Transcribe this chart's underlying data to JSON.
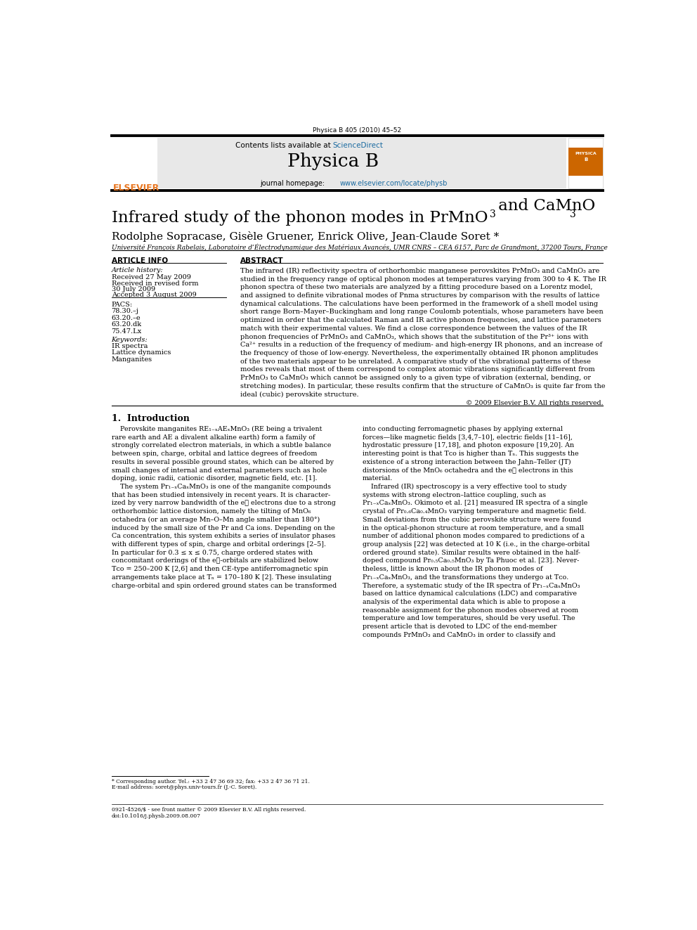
{
  "page_width": 9.92,
  "page_height": 13.23,
  "background_color": "#ffffff",
  "top_journal_line": "Physica B 405 (2010) 45–52",
  "header_bg": "#e8e8e8",
  "header_sciencedirect_color": "#1a6aa0",
  "header_journal_name": "Physica B",
  "header_homepage_url": "www.elsevier.com/locate/physb",
  "header_homepage_url_color": "#1a6aa0",
  "title_main": "Infrared study of the phonon modes in PrMnO",
  "title_sub1": "3",
  "title_mid": " and CaMnO",
  "title_sub2": "3",
  "authors": "Rodolphe Sopracase, Gisèle Gruener, Enrick Olive, Jean-Claude Soret *",
  "affiliation": "Université François Rabelais, Laboratoire d’Électrodynamique des Matériaux Avancés, UMR CNRS – CEA 6157, Parc de Grandmont, 37200 Tours, France",
  "article_info_header": "ARTICLE INFO",
  "history_label": "Article history:",
  "received": "Received 27 May 2009",
  "revised": "Received in revised form",
  "revised2": "30 July 2009",
  "accepted": "Accepted 3 August 2009",
  "pacs_label": "PACS:",
  "pacs_values": [
    "78.30.–j",
    "63.20.–e",
    "63.20.dk",
    "75.47.Lx"
  ],
  "keywords_label": "Keywords:",
  "keywords": [
    "IR spectra",
    "Lattice dynamics",
    "Manganites"
  ],
  "abstract_header": "ABSTRACT",
  "abstract_lines": [
    "The infrared (IR) reflectivity spectra of orthorhombic manganese perovskites PrMnO₃ and CaMnO₃ are",
    "studied in the frequency range of optical phonon modes at temperatures varying from 300 to 4 K. The IR",
    "phonon spectra of these two materials are analyzed by a fitting procedure based on a Lorentz model,",
    "and assigned to definite vibrational modes of Pnma structures by comparison with the results of lattice",
    "dynamical calculations. The calculations have been performed in the framework of a shell model using",
    "short range Born–Mayer–Buckingham and long range Coulomb potentials, whose parameters have been",
    "optimized in order that the calculated Raman and IR active phonon frequencies, and lattice parameters",
    "match with their experimental values. We find a close correspondence between the values of the IR",
    "phonon frequencies of PrMnO₃ and CaMnO₃, which shows that the substitution of the Pr³⁺ ions with",
    "Ca²⁺ results in a reduction of the frequency of medium- and high-energy IR phonons, and an increase of",
    "the frequency of those of low-energy. Nevertheless, the experimentally obtained IR phonon amplitudes",
    "of the two materials appear to be unrelated. A comparative study of the vibrational patterns of these",
    "modes reveals that most of them correspond to complex atomic vibrations significantly different from",
    "PrMnO₃ to CaMnO₃ which cannot be assigned only to a given type of vibration (external, bending, or",
    "stretching modes). In particular, these results confirm that the structure of CaMnO₃ is quite far from the",
    "ideal (cubic) perovskite structure."
  ],
  "copyright": "© 2009 Elsevier B.V. All rights reserved.",
  "section1_title": "1.  Introduction",
  "intro_col1_lines": [
    "    Perovskite manganites RE₁₋ₓAEₓMnO₃ (RE being a trivalent",
    "rare earth and AE a divalent alkaline earth) form a family of",
    "strongly correlated electron materials, in which a subtle balance",
    "between spin, charge, orbital and lattice degrees of freedom",
    "results in several possible ground states, which can be altered by",
    "small changes of internal and external parameters such as hole",
    "doping, ionic radii, cationic disorder, magnetic field, etc. [1].",
    "    The system Pr₁₋ₓCaₓMnO₃ is one of the manganite compounds",
    "that has been studied intensively in recent years. It is character-",
    "ized by very narrow bandwidth of the e⁧ electrons due to a strong",
    "orthorhombic lattice distorsion, namely the tilting of MnO₆",
    "octahedra (or an average Mn–O–Mn angle smaller than 180°)",
    "induced by the small size of the Pr and Ca ions. Depending on the",
    "Ca concentration, this system exhibits a series of insulator phases",
    "with different types of spin, charge and orbital orderings [2–5].",
    "In particular for 0.3 ≤ x ≤ 0.75, charge ordered states with",
    "concomitant orderings of the e⁧-orbitals are stabilized below",
    "Tᴄᴏ = 250–200 K [2,6] and then CE-type antiferromagnetic spin",
    "arrangements take place at Tₙ = 170–180 K [2]. These insulating",
    "charge-orbital and spin ordered ground states can be transformed"
  ],
  "intro_col2_lines": [
    "into conducting ferromagnetic phases by applying external",
    "forces—like magnetic fields [3,4,7–10], electric fields [11–16],",
    "hydrostatic pressure [17,18], and photon exposure [19,20]. An",
    "interesting point is that Tᴄᴏ is higher than Tₙ. This suggests the",
    "existence of a strong interaction between the Jahn–Teller (JT)",
    "distorsions of the MnO₆ octahedra and the e⁧ electrons in this",
    "material.",
    "    Infrared (IR) spectroscopy is a very effective tool to study",
    "systems with strong electron–lattice coupling, such as",
    "Pr₁₋ₓCaₓMnO₃. Okimoto et al. [21] measured IR spectra of a single",
    "crystal of Pr₀.₆Ca₀.₄MnO₃ varying temperature and magnetic field.",
    "Small deviations from the cubic perovskite structure were found",
    "in the optical-phonon structure at room temperature, and a small",
    "number of additional phonon modes compared to predictions of a",
    "group analysis [22] was detected at 10 K (i.e., in the charge-orbital",
    "ordered ground state). Similar results were obtained in the half-",
    "doped compound Pr₀.₅Ca₀.₅MnO₃ by Ta Phuoc et al. [23]. Never-",
    "theless, little is known about the IR phonon modes of",
    "Pr₁₋ₓCaₓMnO₃, and the transformations they undergo at Tᴄᴏ.",
    "Therefore, a systematic study of the IR spectra of Pr₁₋ₓCaₓMnO₃",
    "based on lattice dynamical calculations (LDC) and comparative",
    "analysis of the experimental data which is able to propose a",
    "reasonable assignment for the phonon modes observed at room",
    "temperature and low temperatures, should be very useful. The",
    "present article that is devoted to LDC of the end-member",
    "compounds PrMnO₃ and CaMnO₃ in order to classify and"
  ],
  "footnote_star": "* Corresponding author. Tel.: +33 2 47 36 69 32; fax: +33 2 47 36 71 21.",
  "footnote_email": "E-mail address: soret@phys.univ-tours.fr (J.-C. Soret).",
  "bottom_line1": "0921-4526/$ - see front matter © 2009 Elsevier B.V. All rights reserved.",
  "bottom_line2": "doi:10.1016/j.physb.2009.08.007"
}
